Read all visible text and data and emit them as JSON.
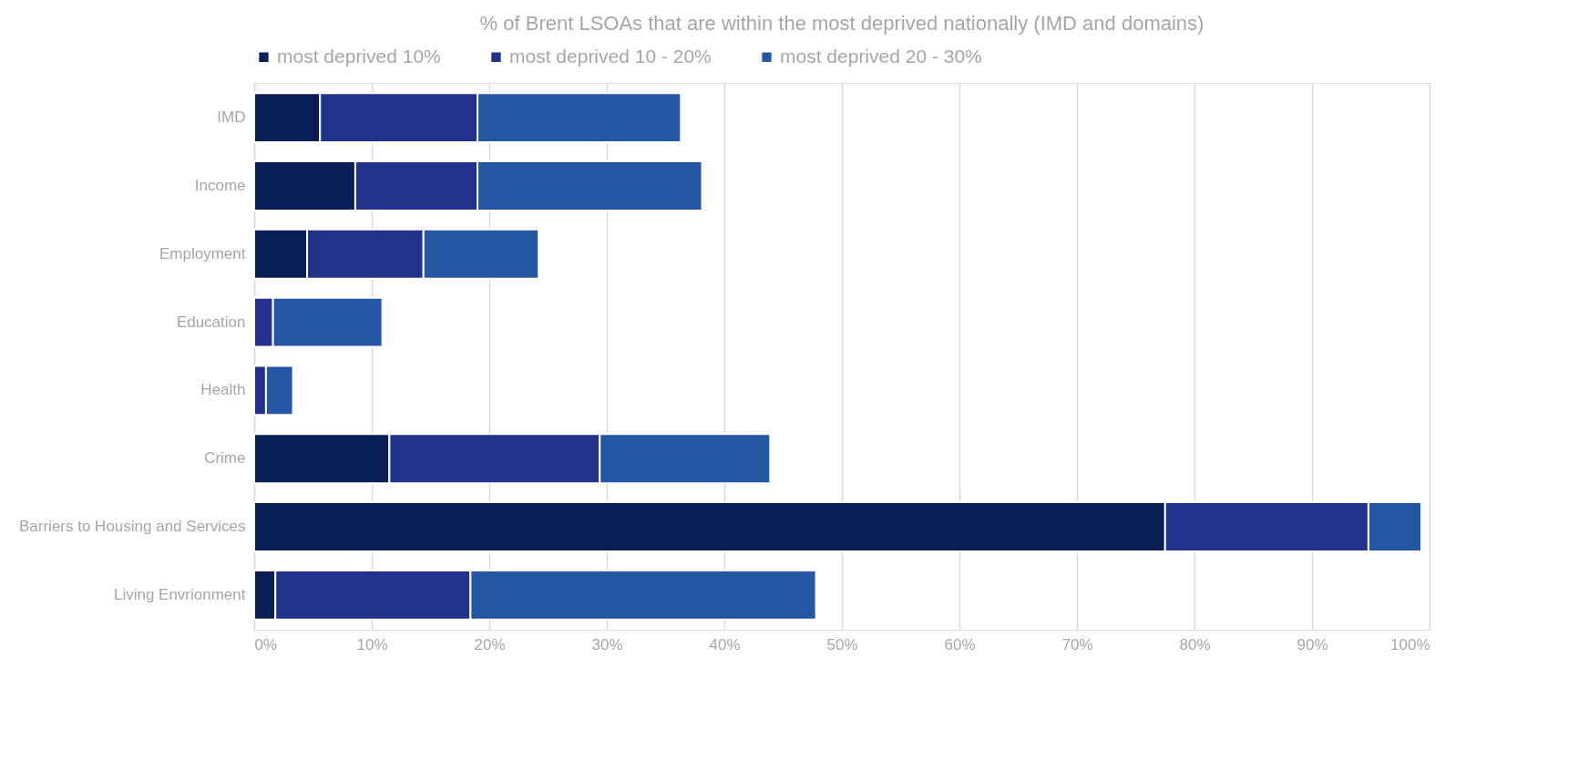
{
  "chart_data": {
    "type": "bar",
    "orientation": "horizontal",
    "stacked": true,
    "title": "% of Brent LSOAs that are within the most deprived nationally (IMD and domains)",
    "categories": [
      "IMD",
      "Income",
      "Employment",
      "Education",
      "Health",
      "Crime",
      "Barriers to Housing and Services",
      "Living Envrionment"
    ],
    "series": [
      {
        "name": "most deprived 10%",
        "color": "#0a1e56",
        "values": [
          5.6,
          8.6,
          4.5,
          0,
          0,
          11.5,
          77.5,
          1.8
        ]
      },
      {
        "name": "most deprived 10 - 20%",
        "color": "#22318c",
        "values": [
          13.4,
          10.4,
          9.9,
          1.6,
          1.0,
          17.9,
          17.3,
          16.6
        ]
      },
      {
        "name": "most deprived 20 - 30%",
        "color": "#2356a3",
        "values": [
          17.3,
          19.1,
          9.8,
          9.3,
          2.3,
          14.5,
          4.5,
          29.4
        ]
      }
    ],
    "xlim": [
      0,
      100
    ],
    "xticks": [
      {
        "value": 0,
        "label": "0%"
      },
      {
        "value": 10,
        "label": "10%"
      },
      {
        "value": 20,
        "label": "20%"
      },
      {
        "value": 30,
        "label": "30%"
      },
      {
        "value": 40,
        "label": "40%"
      },
      {
        "value": 50,
        "label": "50%"
      },
      {
        "value": 60,
        "label": "60%"
      },
      {
        "value": 70,
        "label": "70%"
      },
      {
        "value": 80,
        "label": "80%"
      },
      {
        "value": 90,
        "label": "90%"
      },
      {
        "value": 100,
        "label": "100%"
      }
    ],
    "grid": "x",
    "legend": "top"
  }
}
